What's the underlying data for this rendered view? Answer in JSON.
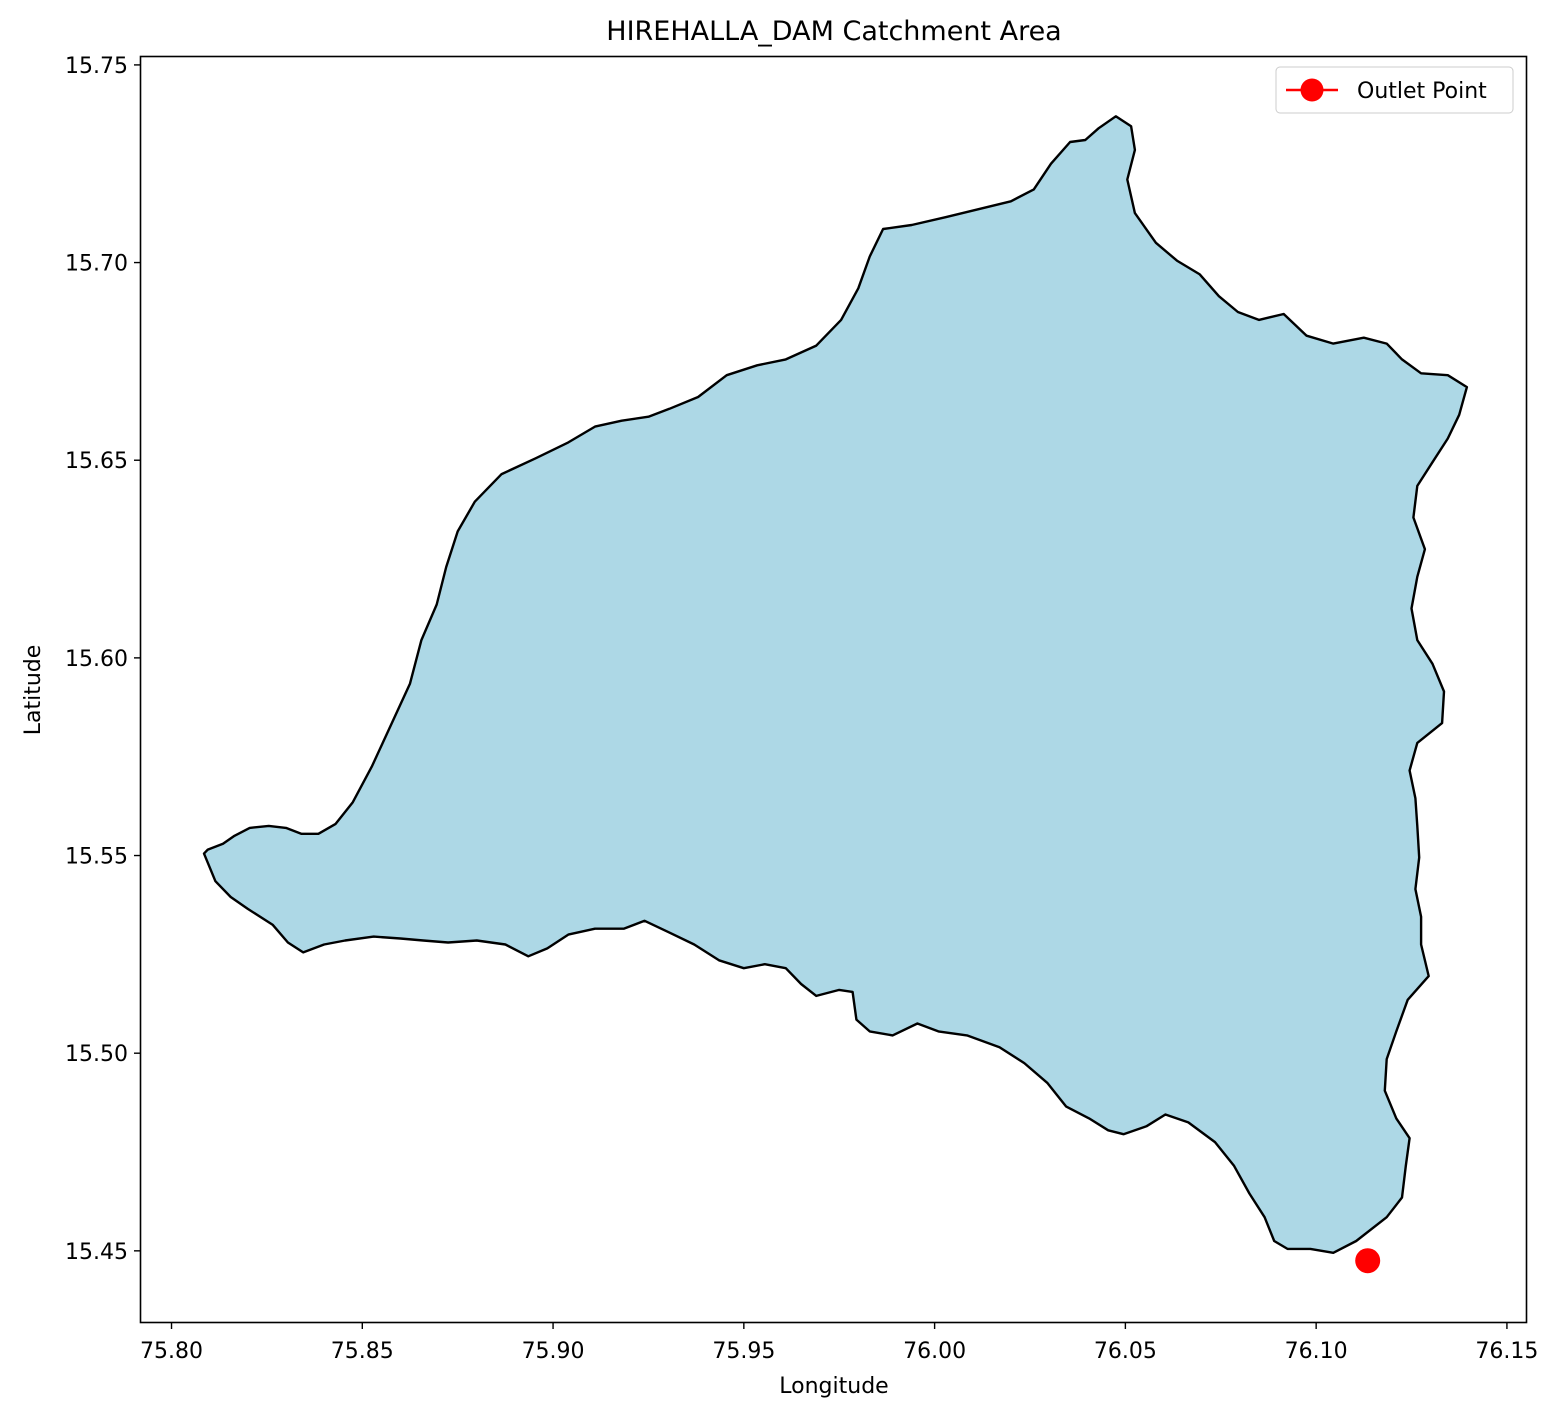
{
  "chart_data": {
    "type": "map",
    "title": "HIREHALLA_DAM Catchment Area",
    "xlabel": "Longitude",
    "ylabel": "Latitude",
    "xlim": [
      75.792,
      76.155
    ],
    "ylim": [
      15.432,
      15.752
    ],
    "xticks": [
      75.8,
      75.85,
      75.9,
      75.95,
      76.0,
      76.05,
      76.1,
      76.15
    ],
    "xtick_labels": [
      "75.80",
      "75.85",
      "75.90",
      "75.95",
      "76.00",
      "76.05",
      "76.10",
      "76.15"
    ],
    "yticks": [
      15.45,
      15.5,
      15.55,
      15.6,
      15.65,
      15.7,
      15.75
    ],
    "ytick_labels": [
      "15.45",
      "15.50",
      "15.55",
      "15.60",
      "15.65",
      "15.70",
      "15.75"
    ],
    "grid": false,
    "catchment": {
      "fill_color": "#add8e6",
      "edge_color": "#000000",
      "boundary": [
        [
          75.8095,
          15.5515
        ],
        [
          75.8135,
          15.553
        ],
        [
          75.8165,
          15.555
        ],
        [
          75.8205,
          15.557
        ],
        [
          75.8255,
          15.5575
        ],
        [
          75.83,
          15.557
        ],
        [
          75.834,
          15.5555
        ],
        [
          75.8385,
          15.5555
        ],
        [
          75.843,
          15.558
        ],
        [
          75.8475,
          15.5635
        ],
        [
          75.8525,
          15.5725
        ],
        [
          75.8575,
          15.583
        ],
        [
          75.8625,
          15.5935
        ],
        [
          75.8655,
          15.6045
        ],
        [
          75.8695,
          15.6135
        ],
        [
          75.872,
          15.623
        ],
        [
          75.875,
          15.632
        ],
        [
          75.8795,
          15.6395
        ],
        [
          75.8865,
          15.6465
        ],
        [
          75.8955,
          15.6505
        ],
        [
          75.904,
          15.6545
        ],
        [
          75.911,
          15.6585
        ],
        [
          75.918,
          15.66
        ],
        [
          75.925,
          15.661
        ],
        [
          75.9305,
          15.663
        ],
        [
          75.938,
          15.666
        ],
        [
          75.9455,
          15.6715
        ],
        [
          75.9535,
          15.674
        ],
        [
          75.961,
          15.6755
        ],
        [
          75.969,
          15.679
        ],
        [
          75.9755,
          15.6855
        ],
        [
          75.98,
          15.6935
        ],
        [
          75.983,
          15.7015
        ],
        [
          75.9865,
          15.7085
        ],
        [
          75.994,
          15.7095
        ],
        [
          76.003,
          15.7115
        ],
        [
          76.0115,
          15.7135
        ],
        [
          76.02,
          15.7155
        ],
        [
          76.026,
          15.7185
        ],
        [
          76.0305,
          15.725
        ],
        [
          76.0355,
          15.7305
        ],
        [
          76.0395,
          15.731
        ],
        [
          76.043,
          15.734
        ],
        [
          76.0475,
          15.737
        ],
        [
          76.0515,
          15.7345
        ],
        [
          76.0525,
          15.7285
        ],
        [
          76.0505,
          15.721
        ],
        [
          76.0525,
          15.7125
        ],
        [
          76.058,
          15.705
        ],
        [
          76.0635,
          15.7005
        ],
        [
          76.0695,
          15.697
        ],
        [
          76.0745,
          15.6915
        ],
        [
          76.0795,
          15.6875
        ],
        [
          76.085,
          15.6855
        ],
        [
          76.0915,
          15.687
        ],
        [
          76.0975,
          15.6815
        ],
        [
          76.1045,
          15.6795
        ],
        [
          76.1125,
          15.681
        ],
        [
          76.1185,
          15.6795
        ],
        [
          76.1225,
          15.6755
        ],
        [
          76.1275,
          15.672
        ],
        [
          76.1345,
          15.6715
        ],
        [
          76.1395,
          15.6685
        ],
        [
          76.1375,
          15.6615
        ],
        [
          76.1345,
          15.6555
        ],
        [
          76.1305,
          15.6495
        ],
        [
          76.1265,
          15.6435
        ],
        [
          76.1255,
          15.6355
        ],
        [
          76.1285,
          15.6275
        ],
        [
          76.1265,
          15.6205
        ],
        [
          76.125,
          15.6125
        ],
        [
          76.1265,
          15.6045
        ],
        [
          76.1305,
          15.5985
        ],
        [
          76.1335,
          15.5915
        ],
        [
          76.133,
          15.5835
        ],
        [
          76.1265,
          15.5785
        ],
        [
          76.1245,
          15.5715
        ],
        [
          76.126,
          15.5645
        ],
        [
          76.1265,
          15.5575
        ],
        [
          76.127,
          15.5495
        ],
        [
          76.126,
          15.5415
        ],
        [
          76.1275,
          15.5345
        ],
        [
          76.1275,
          15.5275
        ],
        [
          76.1295,
          15.5195
        ],
        [
          76.124,
          15.5135
        ],
        [
          76.121,
          15.5055
        ],
        [
          76.1185,
          15.4985
        ],
        [
          76.118,
          15.4905
        ],
        [
          76.121,
          15.4835
        ],
        [
          76.1245,
          15.4785
        ],
        [
          76.1235,
          15.4715
        ],
        [
          76.1225,
          15.4635
        ],
        [
          76.1185,
          15.4585
        ],
        [
          76.1105,
          15.4525
        ],
        [
          76.1045,
          15.4495
        ],
        [
          76.0985,
          15.4505
        ],
        [
          76.0925,
          15.4505
        ],
        [
          76.089,
          15.4525
        ],
        [
          76.0865,
          15.4585
        ],
        [
          76.0825,
          15.4645
        ],
        [
          76.0785,
          15.4715
        ],
        [
          76.0735,
          15.4775
        ],
        [
          76.0665,
          15.4825
        ],
        [
          76.0605,
          15.4845
        ],
        [
          76.0555,
          15.4815
        ],
        [
          76.0495,
          15.4795
        ],
        [
          76.0455,
          15.4805
        ],
        [
          76.0405,
          15.4835
        ],
        [
          76.0345,
          15.4865
        ],
        [
          76.0295,
          15.4925
        ],
        [
          76.0235,
          15.4975
        ],
        [
          76.017,
          15.5015
        ],
        [
          76.0085,
          15.5045
        ],
        [
          76.001,
          15.5055
        ],
        [
          75.9955,
          15.5075
        ],
        [
          75.989,
          15.5045
        ],
        [
          75.983,
          15.5055
        ],
        [
          75.9795,
          15.5085
        ],
        [
          75.9785,
          15.5155
        ],
        [
          75.975,
          15.516
        ],
        [
          75.969,
          15.5145
        ],
        [
          75.965,
          15.5175
        ],
        [
          75.961,
          15.5215
        ],
        [
          75.9555,
          15.5225
        ],
        [
          75.95,
          15.5215
        ],
        [
          75.9435,
          15.5235
        ],
        [
          75.937,
          15.5275
        ],
        [
          75.9305,
          15.5305
        ],
        [
          75.924,
          15.5335
        ],
        [
          75.9185,
          15.5315
        ],
        [
          75.911,
          15.5315
        ],
        [
          75.904,
          15.53
        ],
        [
          75.8985,
          15.5265
        ],
        [
          75.8935,
          15.5245
        ],
        [
          75.8875,
          15.5275
        ],
        [
          75.88,
          15.5285
        ],
        [
          75.8725,
          15.528
        ],
        [
          75.866,
          15.5285
        ],
        [
          75.86,
          15.529
        ],
        [
          75.853,
          15.5295
        ],
        [
          75.8455,
          15.5285
        ],
        [
          75.84,
          15.5275
        ],
        [
          75.8345,
          15.5255
        ],
        [
          75.8305,
          15.528
        ],
        [
          75.8265,
          15.5325
        ],
        [
          75.82,
          15.5365
        ],
        [
          75.8155,
          15.5395
        ],
        [
          75.8115,
          15.5435
        ],
        [
          75.8085,
          15.5505
        ]
      ]
    },
    "outlet": {
      "label": "Outlet Point",
      "lon": 76.1135,
      "lat": 15.4475,
      "color": "#ff0000"
    },
    "legend": {
      "placement": "top-right",
      "entries": [
        "Outlet Point"
      ]
    }
  }
}
